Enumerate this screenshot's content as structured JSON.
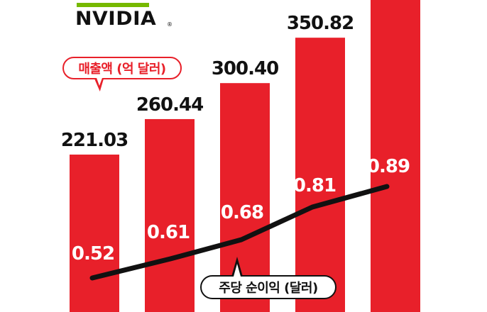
{
  "logo": {
    "text": "NVIDIA",
    "mark": "®",
    "accent": "#76b900"
  },
  "chart_data": {
    "type": "bar",
    "revenue_label": "매출액 (억 달러)",
    "eps_label": "주당 순이익 (달러)",
    "series": [
      {
        "name": "매출액 (억 달러)",
        "type": "bar",
        "values": [
          221.03,
          260.44,
          300.4,
          350.82,
          400
        ],
        "labels": [
          "221.03",
          "260.44",
          "300.40",
          "350.82",
          ""
        ]
      },
      {
        "name": "주당 순이익 (달러)",
        "type": "line",
        "values": [
          0.52,
          0.61,
          0.68,
          0.81,
          0.89
        ],
        "labels": [
          "0.52",
          "0.61",
          "0.68",
          "0.81",
          "0.89"
        ]
      }
    ],
    "bar_color": "#e8202a",
    "line_color": "#111111",
    "eps_label_color": "#ffffff"
  }
}
